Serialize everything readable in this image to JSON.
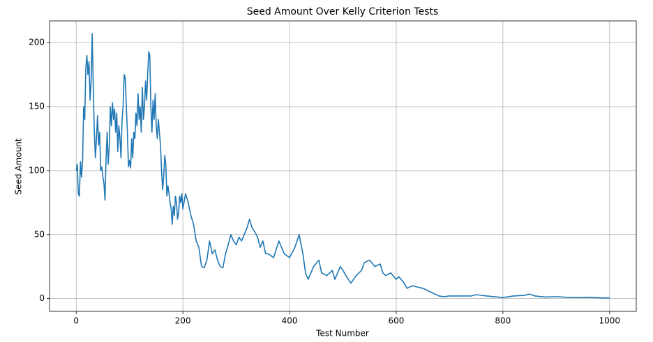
{
  "chart_data": {
    "type": "line",
    "title": "Seed Amount Over Kelly Criterion Tests",
    "x_label": "Test Number",
    "y_label": "Seed Amount",
    "xlim": [
      -50,
      1050
    ],
    "ylim": [
      -10,
      217
    ],
    "xticks": [
      0,
      200,
      400,
      600,
      800,
      1000
    ],
    "yticks": [
      0,
      50,
      100,
      150,
      200
    ],
    "grid": true,
    "x": [
      0,
      2,
      4,
      6,
      8,
      10,
      12,
      14,
      16,
      18,
      20,
      22,
      24,
      26,
      28,
      30,
      32,
      34,
      36,
      38,
      40,
      42,
      44,
      46,
      48,
      50,
      52,
      54,
      56,
      58,
      60,
      62,
      64,
      66,
      68,
      70,
      72,
      74,
      76,
      78,
      80,
      82,
      84,
      86,
      88,
      90,
      92,
      94,
      96,
      98,
      100,
      102,
      104,
      106,
      108,
      110,
      112,
      114,
      116,
      118,
      120,
      122,
      124,
      126,
      128,
      130,
      132,
      134,
      136,
      138,
      140,
      142,
      144,
      146,
      148,
      150,
      152,
      154,
      156,
      158,
      160,
      162,
      164,
      166,
      168,
      170,
      172,
      174,
      176,
      178,
      180,
      182,
      184,
      186,
      188,
      190,
      192,
      194,
      196,
      198,
      200,
      205,
      210,
      215,
      220,
      225,
      230,
      235,
      240,
      245,
      250,
      255,
      260,
      265,
      270,
      275,
      280,
      285,
      290,
      295,
      300,
      305,
      310,
      315,
      320,
      325,
      330,
      335,
      340,
      345,
      350,
      355,
      360,
      370,
      380,
      390,
      400,
      410,
      418,
      425,
      430,
      435,
      440,
      445,
      455,
      460,
      470,
      480,
      485,
      495,
      500,
      510,
      515,
      525,
      535,
      540,
      550,
      560,
      570,
      575,
      580,
      590,
      600,
      605,
      615,
      620,
      630,
      640,
      650,
      660,
      670,
      680,
      690,
      700,
      720,
      740,
      750,
      770,
      790,
      800,
      820,
      840,
      850,
      860,
      880,
      900,
      920,
      940,
      960,
      980,
      1000
    ],
    "series": [
      {
        "name": "Seed Amount",
        "color": "#1f77b4",
        "values": [
          100,
          105,
          82,
          80,
          107,
          95,
          108,
          150,
          140,
          180,
          190,
          175,
          185,
          155,
          170,
          207,
          165,
          130,
          110,
          125,
          143,
          120,
          130,
          100,
          103,
          95,
          90,
          77,
          110,
          130,
          105,
          120,
          150,
          135,
          153,
          140,
          148,
          130,
          145,
          115,
          135,
          125,
          110,
          140,
          150,
          175,
          172,
          150,
          130,
          103,
          108,
          102,
          125,
          110,
          130,
          125,
          145,
          135,
          160,
          140,
          150,
          130,
          165,
          140,
          150,
          170,
          155,
          175,
          193,
          190,
          150,
          130,
          155,
          140,
          160,
          135,
          125,
          140,
          130,
          120,
          100,
          85,
          95,
          112,
          105,
          80,
          88,
          82,
          75,
          70,
          58,
          72,
          65,
          80,
          75,
          62,
          67,
          80,
          75,
          82,
          70,
          82,
          75,
          65,
          58,
          45,
          40,
          25,
          24,
          30,
          45,
          35,
          38,
          30,
          25,
          24,
          35,
          42,
          50,
          45,
          42,
          48,
          45,
          50,
          55,
          62,
          55,
          52,
          48,
          40,
          45,
          35,
          35,
          32,
          45,
          35,
          32,
          40,
          50,
          35,
          20,
          15,
          20,
          25,
          30,
          20,
          18,
          22,
          15,
          25,
          22,
          15,
          12,
          18,
          22,
          28,
          30,
          25,
          27,
          20,
          18,
          20,
          15,
          17,
          12,
          8,
          10,
          9,
          8,
          6,
          4,
          2,
          1.5,
          2,
          2,
          2,
          3,
          2,
          1.2,
          0.8,
          2,
          2.5,
          3.5,
          2,
          1.2,
          1.5,
          1,
          0.8,
          1,
          0.6,
          0.5
        ]
      }
    ]
  }
}
